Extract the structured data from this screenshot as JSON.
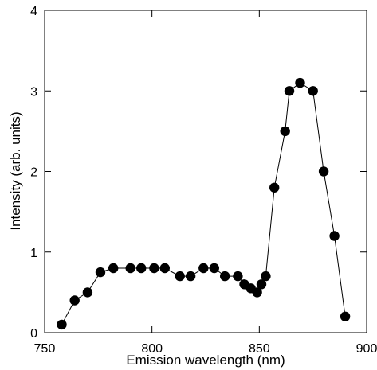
{
  "chart_data": {
    "type": "scatter",
    "xlabel": "Emission wavelength (nm)",
    "ylabel": "Intensity (arb. units)",
    "xlim": [
      750,
      900
    ],
    "ylim": [
      0,
      4
    ],
    "xticks": [
      750,
      800,
      850,
      900
    ],
    "yticks": [
      0,
      1,
      2,
      3,
      4
    ],
    "grid": false,
    "series": [
      {
        "color": "#000000",
        "marker": "filled-circle",
        "connected": true,
        "points": [
          {
            "x": 758,
            "y": 0.1
          },
          {
            "x": 764,
            "y": 0.4
          },
          {
            "x": 770,
            "y": 0.5
          },
          {
            "x": 776,
            "y": 0.75
          },
          {
            "x": 782,
            "y": 0.8
          },
          {
            "x": 790,
            "y": 0.8
          },
          {
            "x": 795,
            "y": 0.8
          },
          {
            "x": 801,
            "y": 0.8
          },
          {
            "x": 806,
            "y": 0.8
          },
          {
            "x": 813,
            "y": 0.7
          },
          {
            "x": 818,
            "y": 0.7
          },
          {
            "x": 824,
            "y": 0.8
          },
          {
            "x": 829,
            "y": 0.8
          },
          {
            "x": 834,
            "y": 0.7
          },
          {
            "x": 840,
            "y": 0.7
          },
          {
            "x": 843,
            "y": 0.6
          },
          {
            "x": 846,
            "y": 0.55
          },
          {
            "x": 849,
            "y": 0.5
          },
          {
            "x": 851,
            "y": 0.6
          },
          {
            "x": 853,
            "y": 0.7
          },
          {
            "x": 857,
            "y": 1.8
          },
          {
            "x": 862,
            "y": 2.5
          },
          {
            "x": 864,
            "y": 3.0
          },
          {
            "x": 869,
            "y": 3.1
          },
          {
            "x": 875,
            "y": 3.0
          },
          {
            "x": 880,
            "y": 2.0
          },
          {
            "x": 885,
            "y": 1.2
          },
          {
            "x": 890,
            "y": 0.2
          }
        ]
      }
    ]
  }
}
